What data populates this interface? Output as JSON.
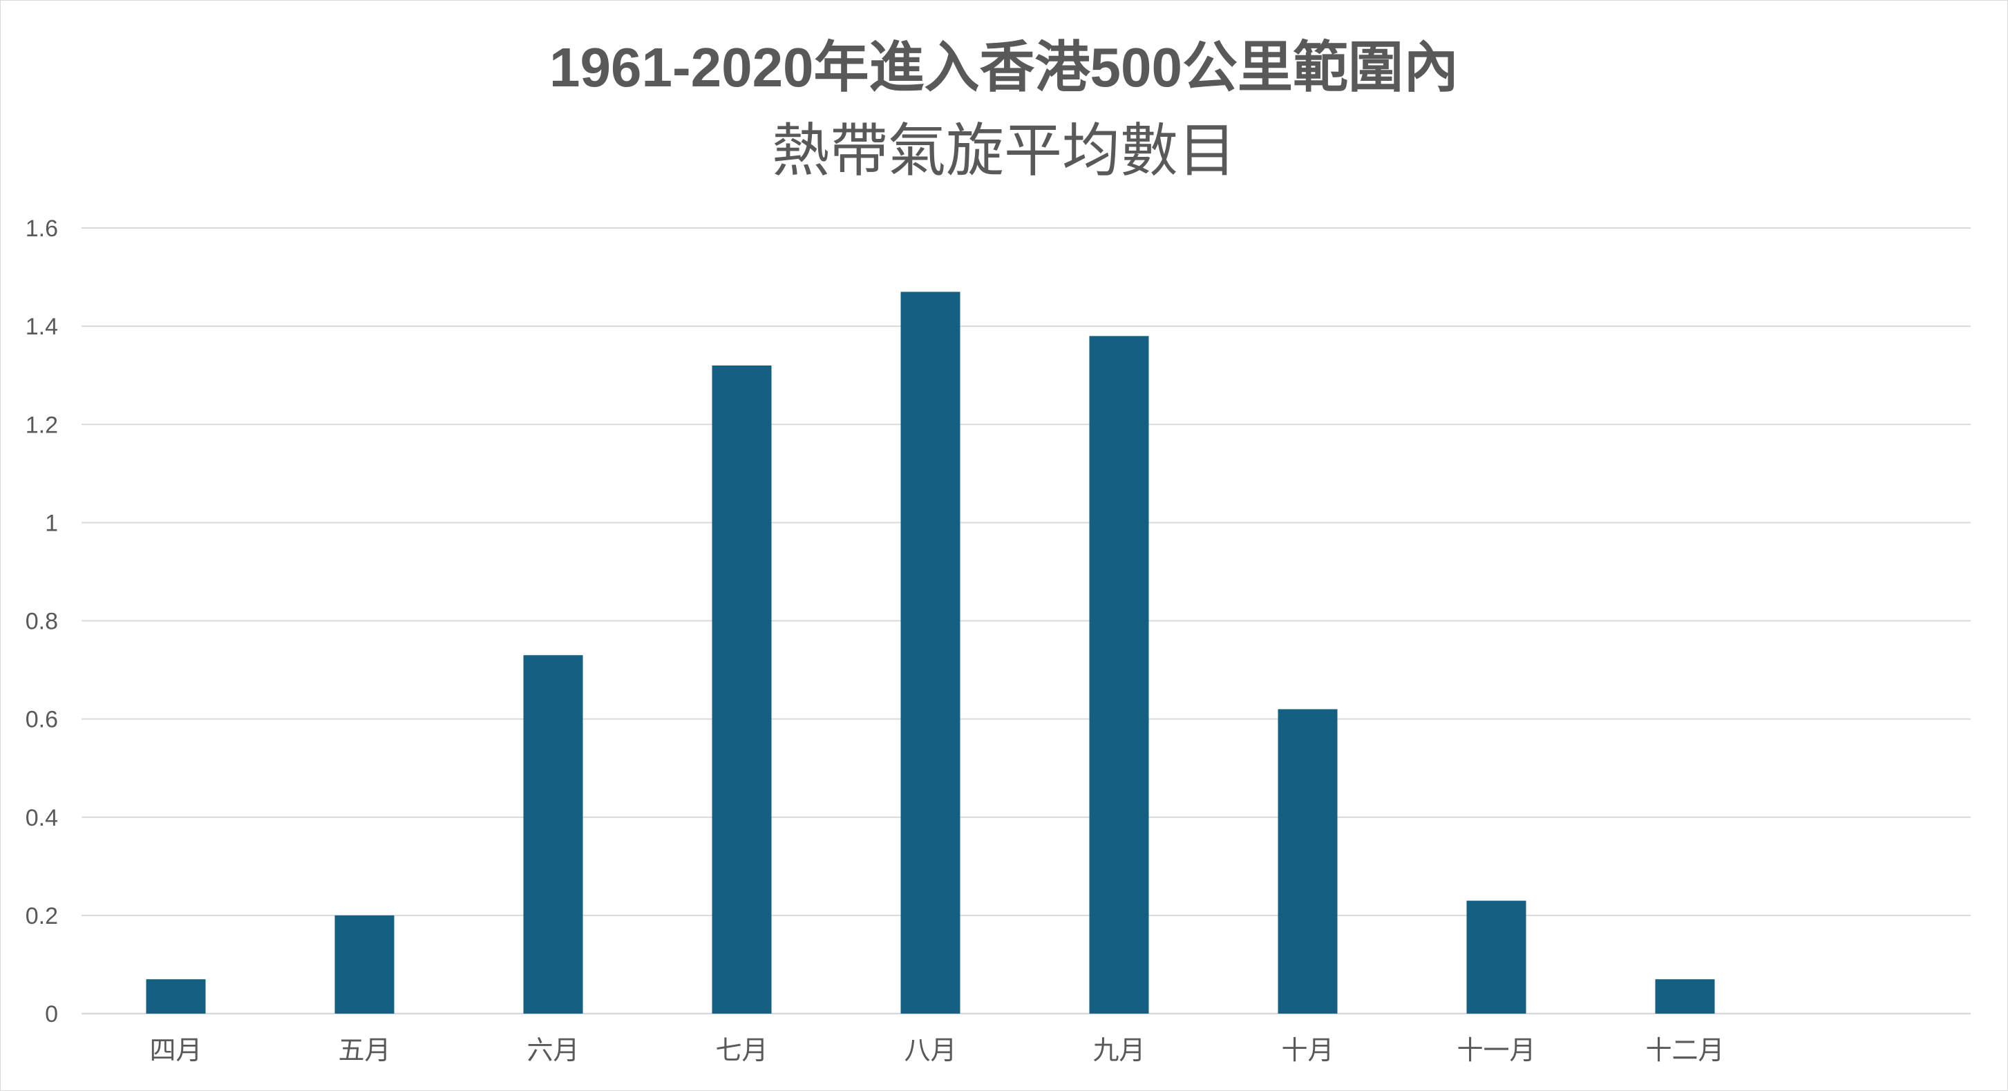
{
  "chart_data": {
    "type": "bar",
    "title_line1": "1961-2020年進入香港500公里範圍內",
    "title_line2": "熱帶氣旋平均數目",
    "categories": [
      "四月",
      "五月",
      "六月",
      "七月",
      "八月",
      "九月",
      "十月",
      "十一月",
      "十二月"
    ],
    "values": [
      0.07,
      0.2,
      0.73,
      1.32,
      1.47,
      1.38,
      0.62,
      0.23,
      0.07
    ],
    "y_ticks": [
      "0",
      "0.2",
      "0.4",
      "0.6",
      "0.8",
      "1",
      "1.2",
      "1.4",
      "1.6"
    ],
    "ylim": [
      0,
      1.6
    ],
    "grid": true,
    "bar_color": "#156082",
    "grid_color": "#d9d9d9",
    "text_color": "#595959"
  }
}
